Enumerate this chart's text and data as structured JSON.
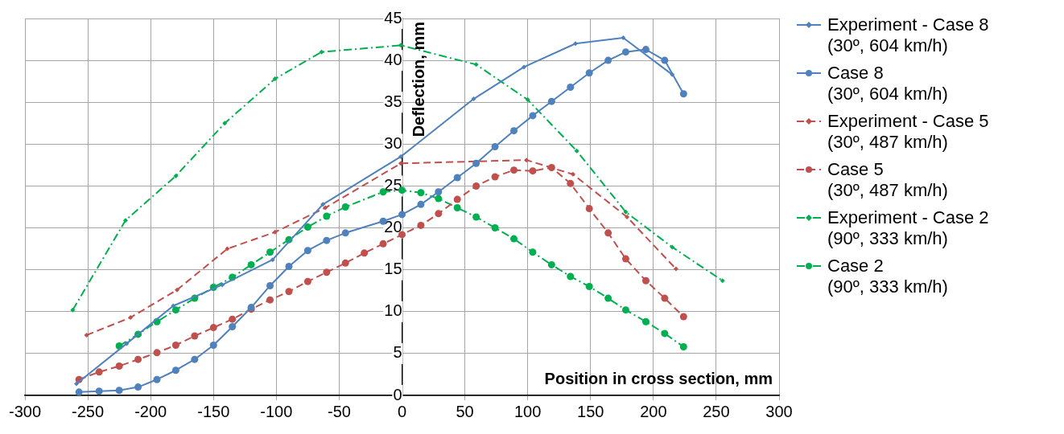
{
  "chart_data": {
    "type": "line",
    "xlabel": "Position in cross section, mm",
    "ylabel": "Deflection, mm",
    "xlim": [
      -300,
      300
    ],
    "xticks": [
      -300,
      -250,
      -200,
      -150,
      -100,
      -50,
      0,
      50,
      100,
      150,
      200,
      250,
      300
    ],
    "ylim": [
      0,
      45
    ],
    "yticks": [
      0,
      5,
      10,
      15,
      20,
      25,
      30,
      35,
      40,
      45
    ],
    "grid": true,
    "legend": "right",
    "series": [
      {
        "name": "Experiment - Case 8 (30º, 604 km/h)",
        "color": "#4f81bd",
        "marker": "diamond",
        "line_style": "solid",
        "x": [
          -259,
          -219,
          -182,
          -143,
          -103,
          -63,
          -1,
          57,
          97,
          138,
          176,
          215
        ],
        "values": [
          1.4,
          6.2,
          10.7,
          13.2,
          16.2,
          22.8,
          28.5,
          35.4,
          39.2,
          42.0,
          42.7,
          38.3
        ]
      },
      {
        "name": "Case 8 (30º, 604 km/h)",
        "color": "#4f81bd",
        "marker": "circle",
        "line_style": "solid",
        "x": [
          -257,
          -241,
          -225,
          -210,
          -195,
          -180,
          -165,
          -150,
          -135,
          -120,
          -105,
          -90,
          -75,
          -60,
          -45,
          -15,
          0,
          15,
          29,
          44,
          59,
          74,
          89,
          104,
          119,
          134,
          149,
          164,
          178,
          194,
          209,
          224
        ],
        "values": [
          0.4,
          0.5,
          0.6,
          1.0,
          1.9,
          3.0,
          4.3,
          6.0,
          8.2,
          10.5,
          13.1,
          15.4,
          17.3,
          18.5,
          19.4,
          20.8,
          21.6,
          22.8,
          24.3,
          26.0,
          27.7,
          29.7,
          31.6,
          33.4,
          35.1,
          36.8,
          38.5,
          40.0,
          41.0,
          41.3,
          40.0,
          36.0
        ]
      },
      {
        "name": "Experiment - Case 5 (30º, 487 km/h)",
        "color": "#c0504d",
        "marker": "diamond",
        "line_style": "dashed",
        "x": [
          -251,
          -216,
          -179,
          -139,
          -101,
          -61,
          -1,
          99,
          136,
          179,
          218
        ],
        "values": [
          7.2,
          9.3,
          12.6,
          17.5,
          19.5,
          22.4,
          27.7,
          28.1,
          26.4,
          21.3,
          15.1
        ]
      },
      {
        "name": "Case 5 (30º, 487 km/h)",
        "color": "#c0504d",
        "marker": "circle",
        "line_style": "dashed",
        "x": [
          -257,
          -241,
          -225,
          -210,
          -195,
          -180,
          -165,
          -150,
          -135,
          -120,
          -105,
          -90,
          -75,
          -60,
          -45,
          -30,
          -15,
          0,
          15,
          29,
          44,
          59,
          74,
          89,
          104,
          119,
          134,
          149,
          164,
          178,
          194,
          209,
          224
        ],
        "values": [
          1.9,
          2.8,
          3.5,
          4.3,
          5.1,
          6.0,
          7.1,
          8.1,
          9.1,
          10.3,
          11.4,
          12.4,
          13.6,
          14.7,
          15.8,
          17.0,
          18.1,
          19.2,
          20.3,
          21.7,
          23.4,
          25.0,
          26.1,
          26.9,
          26.8,
          27.2,
          25.3,
          22.3,
          19.4,
          16.3,
          13.7,
          11.6,
          9.4
        ]
      },
      {
        "name": "Experiment - Case 2 (90º, 333 km/h)",
        "color": "#00b050",
        "marker": "diamond",
        "line_style": "dashdot",
        "x": [
          -262,
          -220,
          -180,
          -141,
          -101,
          -64,
          -1,
          59,
          100,
          139,
          178,
          215,
          255
        ],
        "values": [
          10.2,
          20.9,
          26.2,
          32.5,
          37.8,
          41.0,
          41.8,
          39.5,
          35.3,
          29.2,
          21.9,
          17.7,
          13.7
        ]
      },
      {
        "name": "Case 2 (90º, 333 km/h)",
        "color": "#00b050",
        "marker": "circle",
        "line_style": "dashdot",
        "x": [
          -225,
          -210,
          -195,
          -180,
          -165,
          -150,
          -135,
          -120,
          -105,
          -90,
          -75,
          -60,
          -45,
          -15,
          0,
          15,
          29,
          44,
          59,
          74,
          89,
          104,
          119,
          134,
          149,
          164,
          178,
          194,
          209,
          224
        ],
        "values": [
          5.9,
          7.3,
          8.8,
          10.2,
          11.6,
          12.9,
          14.1,
          15.6,
          17.1,
          18.6,
          20.1,
          21.4,
          22.5,
          24.3,
          24.5,
          24.2,
          23.5,
          22.4,
          21.3,
          20.0,
          18.7,
          17.1,
          15.6,
          14.2,
          13.0,
          11.6,
          10.2,
          8.8,
          7.4,
          5.8
        ]
      }
    ]
  }
}
